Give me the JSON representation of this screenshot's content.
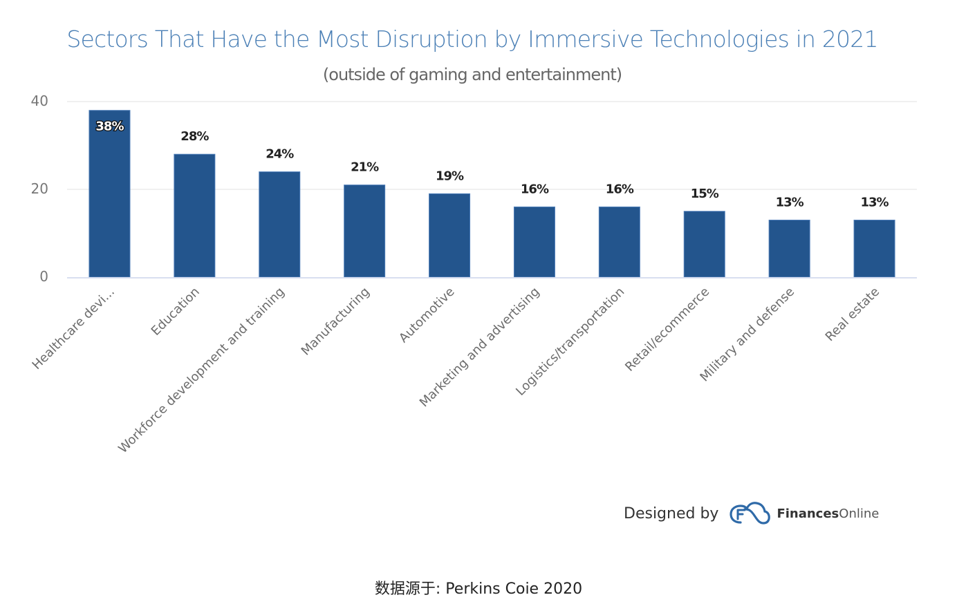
{
  "chart_data": {
    "type": "bar",
    "title": "Sectors That Have the Most Disruption by Immersive Technologies in 2021",
    "subtitle": "(outside of gaming and entertainment)",
    "xlabel": "",
    "ylabel": "",
    "ylim": [
      0,
      40
    ],
    "yticks": [
      0,
      20,
      40
    ],
    "grid": true,
    "legend": "none",
    "categories": [
      "Healthcare devi...",
      "Education",
      "Workforce development and training",
      "Manufacturing",
      "Automotive",
      "Marketing and advertising",
      "Logistics/transportation",
      "Retail/ecommerce",
      "Military and defense",
      "Real estate"
    ],
    "values": [
      38,
      28,
      24,
      21,
      19,
      16,
      16,
      15,
      13,
      13
    ],
    "data_labels": [
      "38%",
      "28%",
      "24%",
      "21%",
      "19%",
      "16%",
      "16%",
      "15%",
      "13%",
      "13%"
    ],
    "bar_color": "#23558d",
    "title_color": "#4a7fb5"
  },
  "credit": {
    "designed_by": "Designed by",
    "brand_bold": "Finances",
    "brand_light": "Online",
    "logo_icon": "financesonline-cloud-logo-icon",
    "logo_color": "#2f6aa8"
  },
  "source": "数据源于: Perkins Coie 2020"
}
